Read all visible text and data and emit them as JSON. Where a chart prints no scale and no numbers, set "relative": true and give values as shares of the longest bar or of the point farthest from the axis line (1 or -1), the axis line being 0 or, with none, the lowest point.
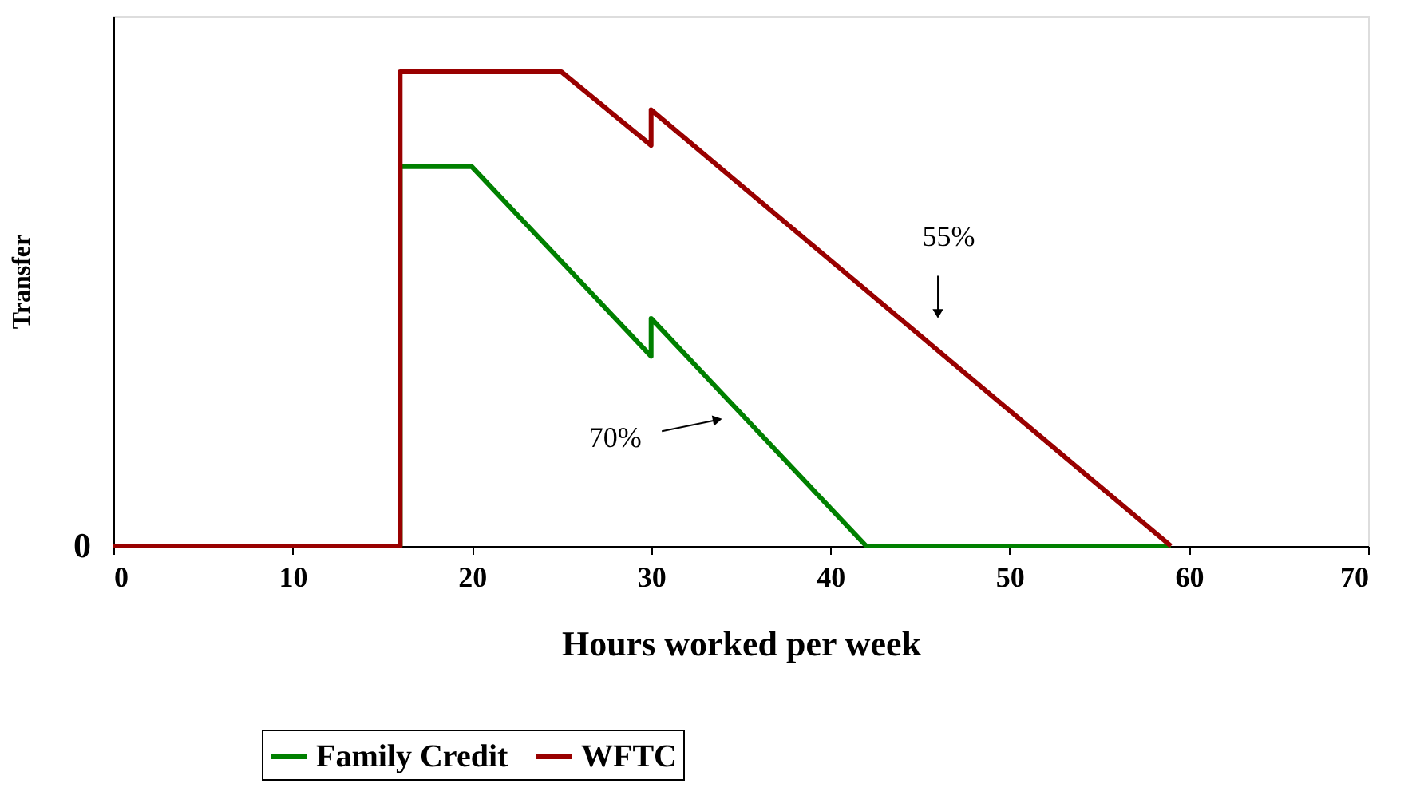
{
  "chart_data": {
    "type": "line",
    "relative": true,
    "xlabel": "Hours worked per week",
    "ylabel": "Transfer",
    "xlim": [
      0,
      70
    ],
    "xticks": [
      0,
      10,
      20,
      30,
      40,
      50,
      60,
      70
    ],
    "grid": false,
    "legend": "bottom",
    "marker": "none",
    "line_style": "solid",
    "series": [
      {
        "name": "Family Credit",
        "color": "#008000",
        "x": [
          0,
          16,
          16,
          20,
          30,
          30,
          42,
          59
        ],
        "values": [
          0,
          0,
          0.8,
          0.8,
          0.4,
          0.48,
          0,
          0
        ]
      },
      {
        "name": "WFTC",
        "color": "#990000",
        "x": [
          0,
          16,
          16,
          25,
          30,
          30,
          59
        ],
        "values": [
          0,
          0,
          1,
          1,
          0.845,
          0.92,
          0
        ]
      }
    ],
    "annotations": [
      "55%",
      "70%",
      "0"
    ]
  }
}
